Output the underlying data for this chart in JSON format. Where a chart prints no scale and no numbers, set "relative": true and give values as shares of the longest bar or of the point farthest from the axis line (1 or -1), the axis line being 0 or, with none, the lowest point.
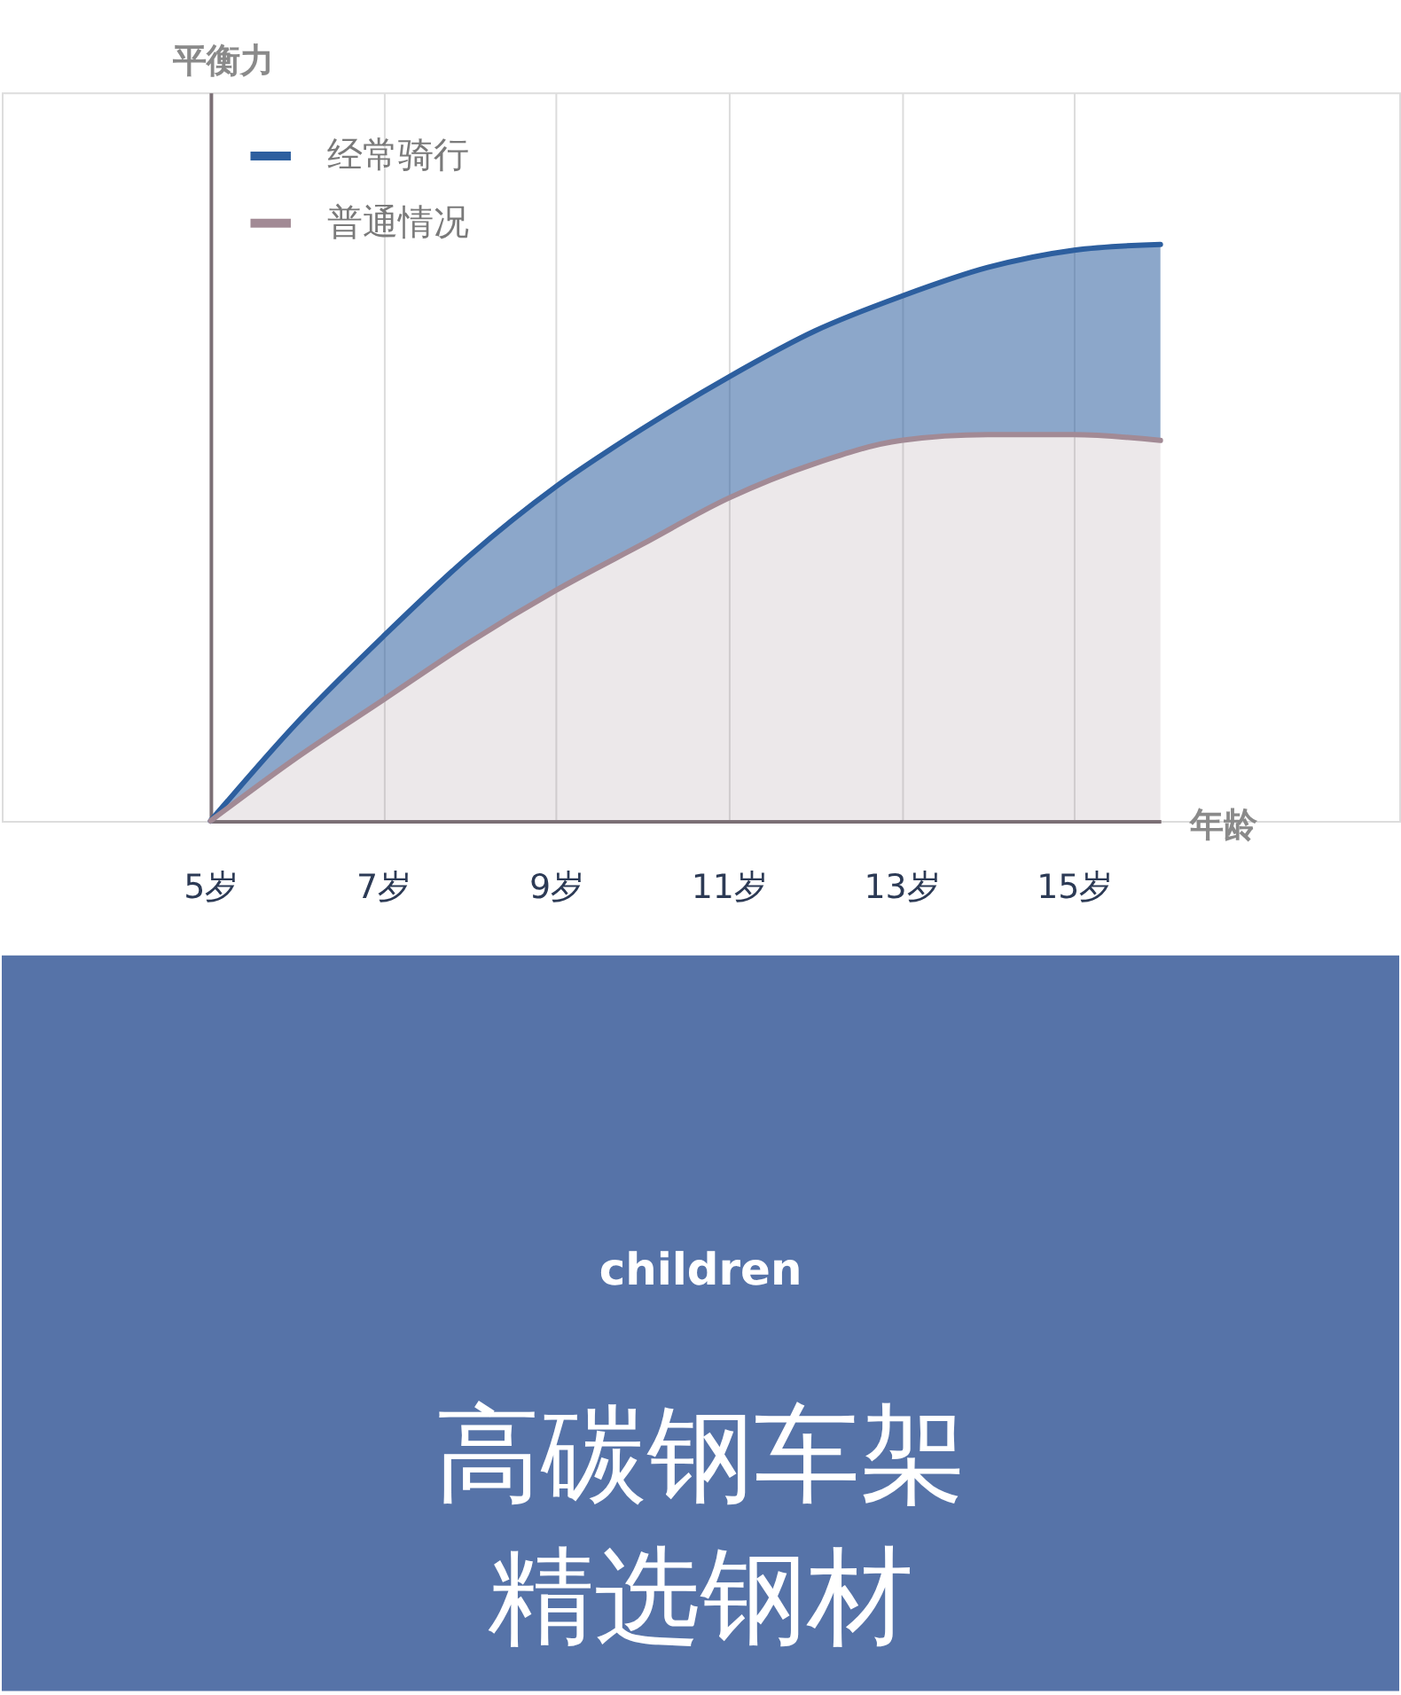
{
  "chart_data": {
    "type": "area",
    "relative": true,
    "ylabel": "平衡力",
    "xlabel": "年龄",
    "x": [
      5,
      6,
      7,
      8,
      9,
      10,
      11,
      12,
      13,
      14,
      15,
      16
    ],
    "xlim": [
      5,
      16
    ],
    "xticks": [
      {
        "value": 5,
        "label": "5岁"
      },
      {
        "value": 7,
        "label": "7岁"
      },
      {
        "value": 9,
        "label": "9岁"
      },
      {
        "value": 11,
        "label": "11岁"
      },
      {
        "value": 13,
        "label": "13岁"
      },
      {
        "value": 15,
        "label": "15岁"
      }
    ],
    "series": [
      {
        "name": "经常骑行",
        "color": "#2d5f9f",
        "values": [
          0,
          0.17,
          0.32,
          0.46,
          0.58,
          0.68,
          0.77,
          0.85,
          0.91,
          0.96,
          0.99,
          1.0
        ]
      },
      {
        "name": "普通情况",
        "color": "#a28a95",
        "values": [
          0,
          0.11,
          0.21,
          0.31,
          0.4,
          0.48,
          0.56,
          0.62,
          0.66,
          0.67,
          0.67,
          0.66
        ]
      }
    ],
    "grid": "x",
    "legend": "top left",
    "annotations": [
      "children",
      "高碳钢车架",
      "精选钢材"
    ]
  }
}
